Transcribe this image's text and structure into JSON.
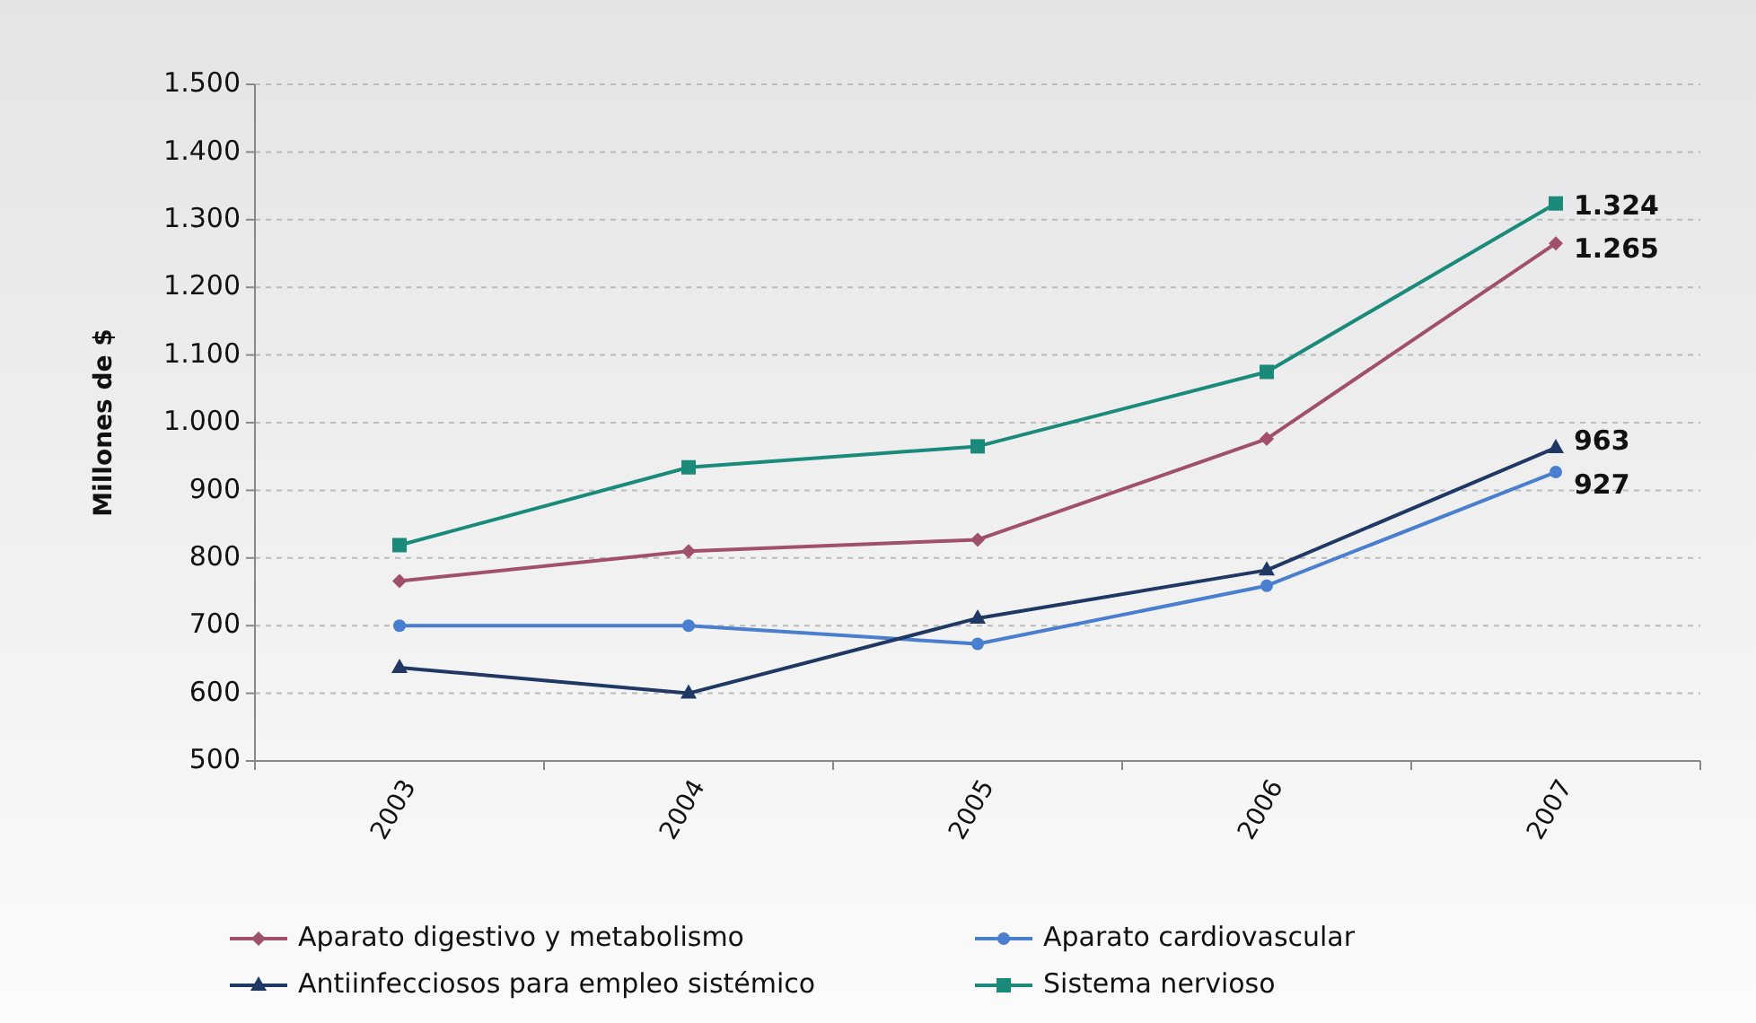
{
  "chart_data": {
    "type": "line",
    "ylabel": "Millones de $",
    "categories": [
      "2003",
      "2004",
      "2005",
      "2006",
      "2007"
    ],
    "series": [
      {
        "name": "Aparato digestivo y metabolismo",
        "color": "#a0506a",
        "marker": "diamond",
        "values": [
          766,
          810,
          827,
          976,
          1265
        ],
        "value_labels": [
          null,
          null,
          null,
          null,
          "1.265"
        ]
      },
      {
        "name": "Aparato cardiovascular",
        "color": "#4a7fd0",
        "marker": "circle",
        "values": [
          700,
          700,
          673,
          759,
          927
        ],
        "value_labels": [
          null,
          null,
          null,
          null,
          "927"
        ]
      },
      {
        "name": "Antiinfecciosos para empleo sistémico",
        "color": "#1f3864",
        "marker": "triangle",
        "values": [
          638,
          600,
          711,
          782,
          963
        ],
        "value_labels": [
          null,
          null,
          null,
          null,
          "963"
        ]
      },
      {
        "name": "Sistema nervioso",
        "color": "#1a8a7a",
        "marker": "square",
        "values": [
          819,
          934,
          965,
          1075,
          1324
        ],
        "value_labels": [
          null,
          null,
          null,
          null,
          "1.324"
        ]
      }
    ],
    "ylim": [
      500,
      1500
    ],
    "yticks": [
      500,
      600,
      700,
      800,
      900,
      {
        "value": 1000,
        "label": "1.000"
      },
      {
        "value": 1100,
        "label": "1.100"
      },
      {
        "value": 1200,
        "label": "1.200"
      },
      {
        "value": 1300,
        "label": "1.300"
      },
      {
        "value": 1400,
        "label": "1.400"
      },
      {
        "value": 1500,
        "label": "1.500"
      }
    ],
    "grid": "y",
    "legend": "bottom"
  }
}
